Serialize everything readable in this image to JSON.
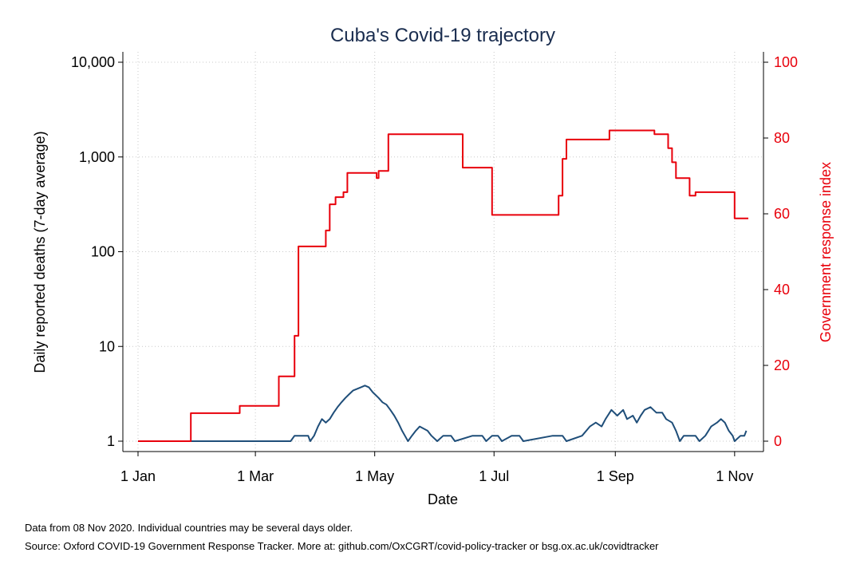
{
  "chart_data": {
    "type": "line",
    "title": "Cuba's Covid-19 trajectory",
    "xlabel": "Date",
    "ylabel_left": "Daily reported deaths (7-day average)",
    "ylabel_right": "Government response index",
    "y_left_scale": "log",
    "y_left_ticks": [
      1,
      10,
      100,
      1000,
      10000
    ],
    "y_left_tick_labels": [
      "1",
      "10",
      "100",
      "1,000",
      "10,000"
    ],
    "y_right_range": [
      0,
      100
    ],
    "y_right_ticks": [
      0,
      20,
      40,
      60,
      80,
      100
    ],
    "y_right_tick_labels": [
      "0",
      "20",
      "40",
      "60",
      "80",
      "100"
    ],
    "x_ticks": [
      "2020-01-01",
      "2020-03-01",
      "2020-05-01",
      "2020-07-01",
      "2020-09-01",
      "2020-11-01"
    ],
    "x_tick_labels": [
      "1 Jan",
      "1 Mar",
      "1 May",
      "1 Jul",
      "1 Sep",
      "1 Nov"
    ],
    "grid": true,
    "series": [
      {
        "axis": "left",
        "color": "#1f4e79",
        "points": [
          [
            "2020-01-01",
            1
          ],
          [
            "2020-03-19",
            1
          ],
          [
            "2020-03-21",
            1.14
          ],
          [
            "2020-03-28",
            1.14
          ],
          [
            "2020-03-29",
            1
          ],
          [
            "2020-03-31",
            1.14
          ],
          [
            "2020-04-02",
            1.43
          ],
          [
            "2020-04-04",
            1.71
          ],
          [
            "2020-04-06",
            1.57
          ],
          [
            "2020-04-08",
            1.71
          ],
          [
            "2020-04-10",
            2.0
          ],
          [
            "2020-04-12",
            2.29
          ],
          [
            "2020-04-14",
            2.57
          ],
          [
            "2020-04-16",
            2.86
          ],
          [
            "2020-04-18",
            3.14
          ],
          [
            "2020-04-20",
            3.43
          ],
          [
            "2020-04-22",
            3.57
          ],
          [
            "2020-04-24",
            3.71
          ],
          [
            "2020-04-26",
            3.86
          ],
          [
            "2020-04-28",
            3.71
          ],
          [
            "2020-04-30",
            3.29
          ],
          [
            "2020-05-03",
            2.86
          ],
          [
            "2020-05-05",
            2.57
          ],
          [
            "2020-05-07",
            2.43
          ],
          [
            "2020-05-09",
            2.14
          ],
          [
            "2020-05-11",
            1.86
          ],
          [
            "2020-05-13",
            1.57
          ],
          [
            "2020-05-15",
            1.29
          ],
          [
            "2020-05-18",
            1
          ],
          [
            "2020-05-20",
            1.14
          ],
          [
            "2020-05-22",
            1.29
          ],
          [
            "2020-05-24",
            1.43
          ],
          [
            "2020-05-28",
            1.29
          ],
          [
            "2020-05-30",
            1.14
          ],
          [
            "2020-06-02",
            1
          ],
          [
            "2020-06-05",
            1.14
          ],
          [
            "2020-06-09",
            1.14
          ],
          [
            "2020-06-11",
            1
          ],
          [
            "2020-06-20",
            1.14
          ],
          [
            "2020-06-25",
            1.14
          ],
          [
            "2020-06-27",
            1
          ],
          [
            "2020-06-30",
            1.14
          ],
          [
            "2020-07-03",
            1.14
          ],
          [
            "2020-07-05",
            1
          ],
          [
            "2020-07-10",
            1.14
          ],
          [
            "2020-07-14",
            1.14
          ],
          [
            "2020-07-16",
            1
          ],
          [
            "2020-07-31",
            1.14
          ],
          [
            "2020-08-05",
            1.14
          ],
          [
            "2020-08-07",
            1
          ],
          [
            "2020-08-15",
            1.14
          ],
          [
            "2020-08-19",
            1.43
          ],
          [
            "2020-08-22",
            1.57
          ],
          [
            "2020-08-25",
            1.43
          ],
          [
            "2020-08-27",
            1.71
          ],
          [
            "2020-08-30",
            2.14
          ],
          [
            "2020-09-02",
            1.86
          ],
          [
            "2020-09-05",
            2.14
          ],
          [
            "2020-09-07",
            1.71
          ],
          [
            "2020-09-10",
            1.86
          ],
          [
            "2020-09-12",
            1.57
          ],
          [
            "2020-09-14",
            1.86
          ],
          [
            "2020-09-16",
            2.14
          ],
          [
            "2020-09-19",
            2.29
          ],
          [
            "2020-09-22",
            2.0
          ],
          [
            "2020-09-25",
            2.0
          ],
          [
            "2020-09-27",
            1.71
          ],
          [
            "2020-09-30",
            1.57
          ],
          [
            "2020-10-02",
            1.29
          ],
          [
            "2020-10-04",
            1
          ],
          [
            "2020-10-06",
            1.14
          ],
          [
            "2020-10-12",
            1.14
          ],
          [
            "2020-10-14",
            1
          ],
          [
            "2020-10-17",
            1.14
          ],
          [
            "2020-10-20",
            1.43
          ],
          [
            "2020-10-23",
            1.57
          ],
          [
            "2020-10-25",
            1.71
          ],
          [
            "2020-10-27",
            1.57
          ],
          [
            "2020-10-29",
            1.29
          ],
          [
            "2020-10-31",
            1.14
          ],
          [
            "2020-11-01",
            1
          ],
          [
            "2020-11-04",
            1.14
          ],
          [
            "2020-11-06",
            1.14
          ],
          [
            "2020-11-07",
            1.29
          ]
        ]
      },
      {
        "axis": "right",
        "color": "#e8000b",
        "step": true,
        "points": [
          [
            "2020-01-01",
            0
          ],
          [
            "2020-01-28",
            7.4
          ],
          [
            "2020-02-22",
            9.3
          ],
          [
            "2020-03-13",
            17.1
          ],
          [
            "2020-03-21",
            27.8
          ],
          [
            "2020-03-23",
            51.4
          ],
          [
            "2020-04-06",
            55.6
          ],
          [
            "2020-04-08",
            62.5
          ],
          [
            "2020-04-11",
            64.4
          ],
          [
            "2020-04-15",
            65.7
          ],
          [
            "2020-04-17",
            70.8
          ],
          [
            "2020-05-02",
            69.4
          ],
          [
            "2020-05-03",
            71.3
          ],
          [
            "2020-05-08",
            81.0
          ],
          [
            "2020-06-15",
            72.2
          ],
          [
            "2020-06-30",
            59.7
          ],
          [
            "2020-08-03",
            64.8
          ],
          [
            "2020-08-05",
            74.5
          ],
          [
            "2020-08-07",
            79.6
          ],
          [
            "2020-08-29",
            82.0
          ],
          [
            "2020-09-21",
            81.0
          ],
          [
            "2020-09-28",
            77.3
          ],
          [
            "2020-09-30",
            73.6
          ],
          [
            "2020-10-02",
            69.4
          ],
          [
            "2020-10-09",
            64.8
          ],
          [
            "2020-10-12",
            65.7
          ],
          [
            "2020-11-01",
            58.8
          ],
          [
            "2020-11-08",
            58.8
          ]
        ]
      }
    ]
  },
  "footer": {
    "note": "Data from 08 Nov 2020. Individual countries may be several days older.",
    "source": "Source: Oxford COVID-19 Government Response Tracker. More at: github.com/OxCGRT/covid-policy-tracker or bsg.ox.ac.uk/covidtracker"
  }
}
